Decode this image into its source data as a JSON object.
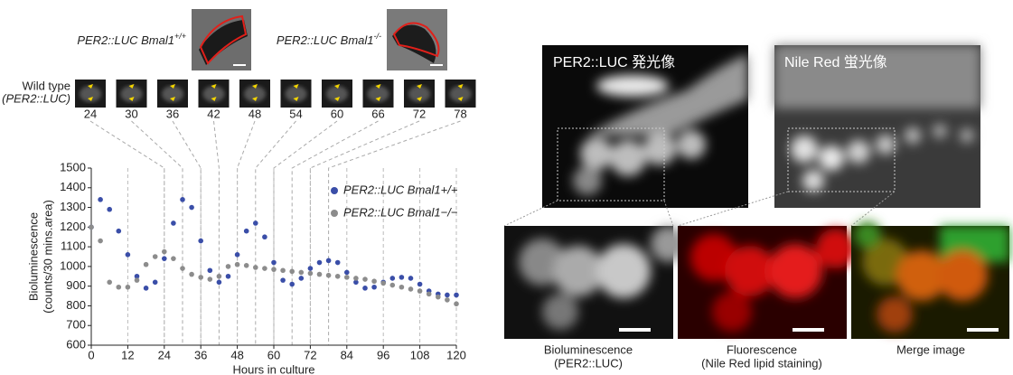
{
  "chart_data": {
    "type": "scatter",
    "x_label": "Hours in culture",
    "y_label": "Bioluminescence",
    "y_label_unit": "(counts/30 mins.area)",
    "x": [
      0,
      3,
      6,
      9,
      12,
      15,
      18,
      21,
      24,
      27,
      30,
      33,
      36,
      39,
      42,
      45,
      48,
      51,
      54,
      57,
      60,
      63,
      66,
      69,
      72,
      75,
      78,
      81,
      84,
      87,
      90,
      93,
      96,
      99,
      102,
      105,
      108,
      111,
      114,
      117,
      120
    ],
    "series": [
      {
        "name": "PER2::LUC Bmal1+/+",
        "color": "#3a4ea8",
        "values": [
          1200,
          1340,
          1290,
          1180,
          1060,
          950,
          890,
          920,
          1040,
          1220,
          1340,
          1300,
          1130,
          980,
          920,
          950,
          1060,
          1180,
          1220,
          1150,
          1020,
          930,
          910,
          940,
          990,
          1020,
          1030,
          1020,
          970,
          920,
          890,
          895,
          920,
          940,
          945,
          940,
          910,
          875,
          860,
          855,
          855
        ]
      },
      {
        "name": "PER2::LUC Bmal1−/−",
        "color": "#8c8c8c",
        "values": [
          1200,
          1130,
          920,
          895,
          895,
          930,
          1010,
          1050,
          1075,
          1040,
          990,
          960,
          945,
          935,
          950,
          1000,
          1010,
          1005,
          995,
          990,
          985,
          980,
          975,
          970,
          965,
          960,
          955,
          950,
          945,
          940,
          935,
          925,
          915,
          905,
          895,
          885,
          875,
          860,
          845,
          830,
          810
        ]
      }
    ],
    "xlim": [
      0,
      120
    ],
    "xticks": [
      0,
      12,
      24,
      36,
      48,
      60,
      72,
      84,
      96,
      108,
      120
    ],
    "ylim": [
      600,
      1500
    ],
    "yticks": [
      600,
      700,
      800,
      900,
      1000,
      1100,
      1200,
      1300,
      1400,
      1500
    ],
    "grid": true,
    "legend": "upper right"
  },
  "thumbnails": {
    "row_label": "Wild type",
    "row_sublabel": "(PER2::LUC)",
    "hours": [
      24,
      30,
      36,
      42,
      48,
      54,
      60,
      66,
      72,
      78
    ]
  },
  "top_images": [
    {
      "label": "PER2::LUC Bmal1",
      "genotype": "+/+"
    },
    {
      "label": "PER2::LUC Bmal1",
      "genotype": "-/-"
    }
  ],
  "micrographs": {
    "panel_titles": [
      "PER2::LUC 発光像",
      "Nile Red 蛍光像"
    ],
    "captions": [
      [
        "Bioluminescence",
        "(PER2::LUC)"
      ],
      [
        "Fluorescence",
        "(Nile Red lipid staining)"
      ],
      [
        "Merge image"
      ]
    ]
  }
}
